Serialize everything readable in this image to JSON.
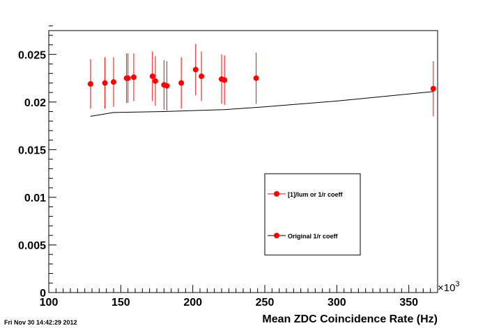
{
  "timestamp": "Fri Nov 30 14:42:29 2012",
  "chart_data": {
    "type": "scatter",
    "title": "",
    "xlabel": "Mean ZDC Coincidence Rate (Hz)",
    "ylabel": "",
    "x_multiplier_label": "×10",
    "x_multiplier_exponent": "3",
    "xlim": [
      100,
      370
    ],
    "ylim": [
      0,
      0.0275
    ],
    "x_ticks": [
      100,
      150,
      200,
      250,
      300,
      350
    ],
    "x_tick_labels": [
      "100",
      "150",
      "200",
      "250",
      "300",
      "350"
    ],
    "y_ticks": [
      0,
      0.005,
      0.01,
      0.015,
      0.02,
      0.025
    ],
    "y_tick_labels": [
      "0",
      "0.005",
      "0.01",
      "0.015",
      "0.02",
      "0.025"
    ],
    "grid": false,
    "legend_position": "center-right",
    "series": [
      {
        "name": "[1]/lum or 1/r coeff",
        "color": "#ff0000",
        "marker": "circle",
        "points": [
          {
            "x": 129,
            "y": 0.0219,
            "err": 0.0026
          },
          {
            "x": 139,
            "y": 0.022,
            "err": 0.0027
          },
          {
            "x": 145,
            "y": 0.0221,
            "err": 0.0026
          },
          {
            "x": 154,
            "y": 0.0225,
            "err": 0.0026
          },
          {
            "x": 155,
            "y": 0.0225,
            "err": 0.0026
          },
          {
            "x": 159,
            "y": 0.0226,
            "err": 0.0025
          },
          {
            "x": 172,
            "y": 0.0227,
            "err": 0.0026
          },
          {
            "x": 174,
            "y": 0.0222,
            "err": 0.0026
          },
          {
            "x": 180,
            "y": 0.0218,
            "err": 0.0026
          },
          {
            "x": 182,
            "y": 0.0217,
            "err": 0.0026
          },
          {
            "x": 192,
            "y": 0.022,
            "err": 0.0027
          },
          {
            "x": 202,
            "y": 0.0234,
            "err": 0.0027
          },
          {
            "x": 206,
            "y": 0.0227,
            "err": 0.0026
          },
          {
            "x": 220,
            "y": 0.0224,
            "err": 0.0026
          },
          {
            "x": 222,
            "y": 0.0223,
            "err": 0.0026
          },
          {
            "x": 244,
            "y": 0.0225,
            "err": 0.0027
          },
          {
            "x": 367,
            "y": 0.0214,
            "err": 0.0029
          }
        ]
      },
      {
        "name": "Original 1/r coeff",
        "color": "#000000",
        "marker": "line",
        "legend_marker_color": "#ff0000",
        "points": [
          {
            "x": 129,
            "y": 0.0185
          },
          {
            "x": 145,
            "y": 0.0189
          },
          {
            "x": 180,
            "y": 0.019
          },
          {
            "x": 222,
            "y": 0.0192
          },
          {
            "x": 250,
            "y": 0.0195
          },
          {
            "x": 300,
            "y": 0.0201
          },
          {
            "x": 367,
            "y": 0.0211
          }
        ]
      }
    ]
  }
}
